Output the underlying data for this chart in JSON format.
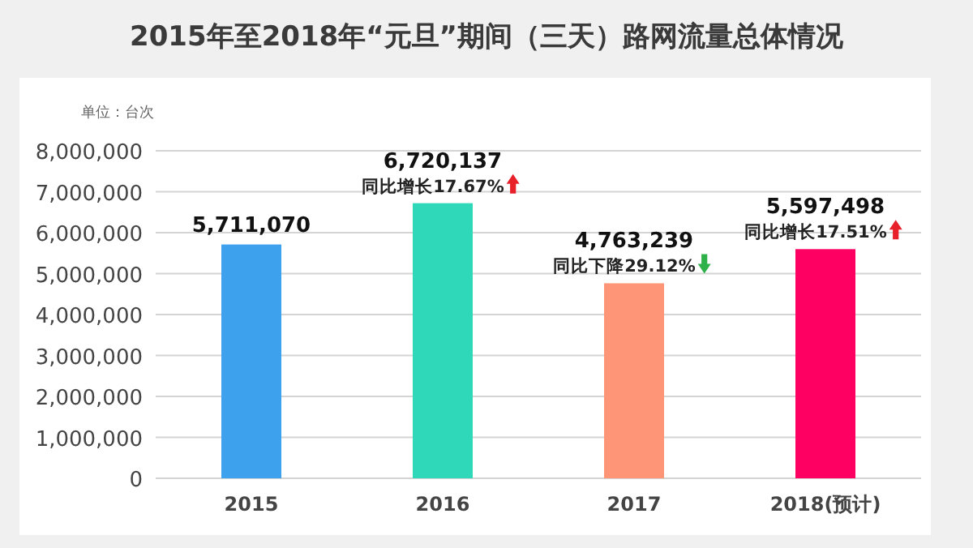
{
  "chart_data": {
    "type": "bar",
    "title": "2015年至2018年“元旦”期间（三天）路网流量总体情况",
    "ylabel": "单位：台次",
    "categories": [
      "2015",
      "2016",
      "2017",
      "2018(预计)"
    ],
    "values": [
      5711070,
      6720137,
      4763239,
      5597498
    ],
    "colors": [
      "#3ea1ee",
      "#2fd8b9",
      "#fe9577",
      "#fe0062"
    ],
    "value_labels": [
      "5,711,070",
      "6,720,137",
      "4,763,239",
      "5,597,498"
    ],
    "annotations": [
      {
        "text": "同比增长17.67%",
        "x": "2016",
        "y": 6720137
      },
      {
        "text": "同比下降29.12%",
        "x": "2017",
        "y": 4763239
      },
      {
        "text": "同比增长17.51%",
        "x": "2018(预计)",
        "y": 5597498
      }
    ],
    "ylim": [
      0,
      8000000
    ],
    "yticks": [
      {
        "value": 0,
        "label": "0"
      },
      {
        "value": 1000000,
        "label": "1,000,000"
      },
      {
        "value": 2000000,
        "label": "2,000,000"
      },
      {
        "value": 3000000,
        "label": "3,000,000"
      },
      {
        "value": 4000000,
        "label": "4,000,000"
      },
      {
        "value": 5000000,
        "label": "5,000,000"
      },
      {
        "value": 6000000,
        "label": "6,000,000"
      },
      {
        "value": 7000000,
        "label": "7,000,000"
      },
      {
        "value": 8000000,
        "label": "8,000,000"
      }
    ],
    "grid": "y"
  }
}
